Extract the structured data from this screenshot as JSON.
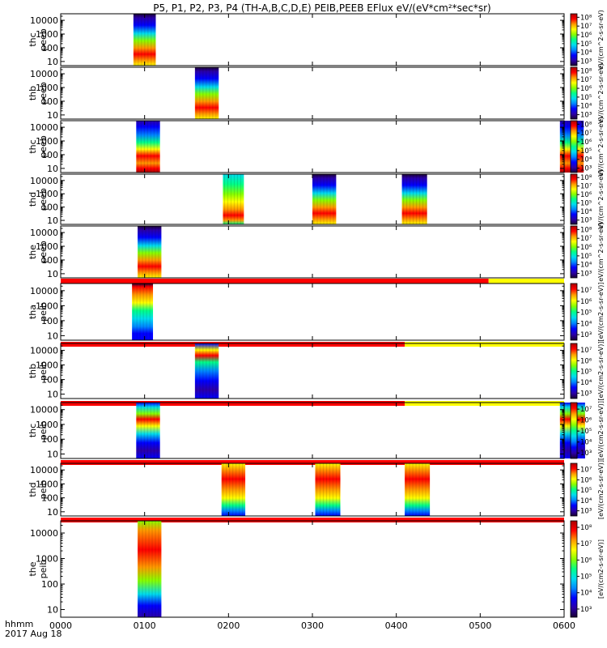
{
  "title": "P5, P1, P2, P3, P4 (TH-A,B,C,D,E) PEIB,PEEB EFlux eV/(eV*cm²*sec*sr)",
  "chart_data": {
    "type": "heatmap",
    "x_ticks": [
      "0000",
      "0100",
      "0200",
      "0300",
      "0400",
      "0500",
      "0600"
    ],
    "x_range_minutes": [
      0,
      360
    ],
    "x_caption_1": "hhmm",
    "x_caption_2": "2017 Aug 18",
    "y_scale": "log",
    "y_ticks": [
      "10",
      "100",
      "1000",
      "10000"
    ],
    "y_ticks_values": [
      10,
      100,
      1000,
      10000
    ],
    "y_range": [
      5,
      30000
    ],
    "colormap": [
      "#1a0033",
      "#2a00aa",
      "#0000ff",
      "#0088ff",
      "#00ddee",
      "#00ff88",
      "#88ff00",
      "#ffff00",
      "#ff9900",
      "#ff0000",
      "#aa0000"
    ],
    "panels": [
      {
        "label_1": "thc",
        "label_2": "peeb",
        "colorbar_ticks": [
          "10⁸",
          "10⁷",
          "10⁶",
          "10⁵",
          "10⁴",
          "10³"
        ],
        "colorbar_values": [
          8,
          7,
          6,
          5,
          4,
          3
        ],
        "colorbar_range": [
          2.5,
          8.4
        ],
        "data_blocks": [
          {
            "start_min": 52,
            "end_min": 68,
            "shape": "peak_low"
          }
        ],
        "bar_after": null
      },
      {
        "label_1": "thb",
        "label_2": "peeb",
        "colorbar_ticks": [
          "10⁸",
          "10⁷",
          "10⁶",
          "10⁵",
          "10⁴",
          "10³"
        ],
        "colorbar_values": [
          8,
          7,
          6,
          5,
          4,
          3
        ],
        "colorbar_range": [
          2.5,
          8.4
        ],
        "data_blocks": [
          {
            "start_min": 96,
            "end_min": 113,
            "shape": "peak_low"
          }
        ],
        "bar_after": null
      },
      {
        "label_1": "thc",
        "label_2": "peeb",
        "colorbar_ticks": [
          "10⁸",
          "10⁷",
          "10⁶",
          "10⁵",
          "10⁴",
          "10³"
        ],
        "colorbar_values": [
          8,
          7,
          6,
          5,
          4,
          3
        ],
        "colorbar_range": [
          2.5,
          8.4
        ],
        "data_blocks": [
          {
            "start_min": 54,
            "end_min": 71,
            "shape": "peak_mid"
          },
          {
            "start_min": 357,
            "end_min": 374,
            "shape": "peak_mid"
          }
        ],
        "bar_after": null
      },
      {
        "label_1": "thd",
        "label_2": "peeb",
        "colorbar_ticks": [
          "10⁸",
          "10⁷",
          "10⁶",
          "10⁵",
          "10⁴",
          "10³"
        ],
        "colorbar_values": [
          8,
          7,
          6,
          5,
          4,
          3
        ],
        "colorbar_range": [
          2.5,
          8.4
        ],
        "data_blocks": [
          {
            "start_min": 116,
            "end_min": 131,
            "shape": "peak_mid_green"
          },
          {
            "start_min": 180,
            "end_min": 197,
            "shape": "peak_low"
          },
          {
            "start_min": 244,
            "end_min": 262,
            "shape": "peak_low"
          }
        ],
        "bar_after": null
      },
      {
        "label_1": "the",
        "label_2": "peeb",
        "colorbar_ticks": [
          "10⁸",
          "10⁷",
          "10⁶",
          "10⁵",
          "10⁴",
          "10³"
        ],
        "colorbar_values": [
          8,
          7,
          6,
          5,
          4,
          3
        ],
        "colorbar_range": [
          2.5,
          8.4
        ],
        "data_blocks": [
          {
            "start_min": 55,
            "end_min": 72,
            "shape": "peak_low"
          }
        ],
        "bar_after": {
          "red_until_min": 306
        }
      },
      {
        "label_1": "tha",
        "label_2": "peib",
        "colorbar_ticks": [
          "10⁷",
          "10⁶",
          "10⁵",
          "10⁴",
          "10³"
        ],
        "colorbar_values": [
          7,
          6,
          5,
          4,
          3
        ],
        "colorbar_range": [
          2.5,
          7.6
        ],
        "data_blocks": [
          {
            "start_min": 51,
            "end_min": 66,
            "shape": "ion_a"
          }
        ],
        "bar_after": {
          "red_until_min": 246
        }
      },
      {
        "label_1": "thb",
        "label_2": "peib",
        "colorbar_ticks": [
          "10⁷",
          "10⁶",
          "10⁵",
          "10⁴",
          "10³"
        ],
        "colorbar_values": [
          7,
          6,
          5,
          4,
          3
        ],
        "colorbar_range": [
          2.5,
          7.6
        ],
        "data_blocks": [
          {
            "start_min": 96,
            "end_min": 113,
            "shape": "ion_b"
          }
        ],
        "bar_after": {
          "red_until_min": 246
        }
      },
      {
        "label_1": "thc",
        "label_2": "peib",
        "colorbar_ticks": [
          "10⁷",
          "10⁶",
          "10⁵",
          "10⁴",
          "10³"
        ],
        "colorbar_values": [
          7,
          6,
          5,
          4,
          3
        ],
        "colorbar_range": [
          2.5,
          7.6
        ],
        "data_blocks": [
          {
            "start_min": 54,
            "end_min": 71,
            "shape": "ion_c"
          },
          {
            "start_min": 357,
            "end_min": 375,
            "shape": "ion_c"
          }
        ],
        "bar_after": {
          "red_until_min": 360
        }
      },
      {
        "label_1": "thd",
        "label_2": "peib",
        "colorbar_ticks": [
          "10⁷",
          "10⁶",
          "10⁵",
          "10⁴",
          "10³"
        ],
        "colorbar_values": [
          7,
          6,
          5,
          4,
          3
        ],
        "colorbar_range": [
          2.5,
          7.6
        ],
        "data_blocks": [
          {
            "start_min": 115,
            "end_min": 132,
            "shape": "ion_d"
          },
          {
            "start_min": 182,
            "end_min": 200,
            "shape": "ion_d"
          },
          {
            "start_min": 246,
            "end_min": 264,
            "shape": "ion_d"
          }
        ],
        "bar_after": {
          "red_until_min": 360
        }
      },
      {
        "label_1": "the",
        "label_2": "peib",
        "colorbar_ticks": [
          "10⁸",
          "10⁷",
          "10⁶",
          "10⁵",
          "10⁴",
          "10³"
        ],
        "colorbar_values": [
          8,
          7,
          6,
          5,
          4,
          3
        ],
        "colorbar_range": [
          2.5,
          8.4
        ],
        "data_blocks": [
          {
            "start_min": 55,
            "end_min": 72,
            "shape": "ion_e"
          }
        ],
        "bar_after": null
      }
    ],
    "colorbar_unit_electron": "eV/(cm^2-s-sr-eV)",
    "colorbar_unit_ion": "[eV/(cm2-s-sr-eV)]",
    "bar_colors": {
      "good": "#ff0000",
      "other": "#ffff00"
    }
  }
}
